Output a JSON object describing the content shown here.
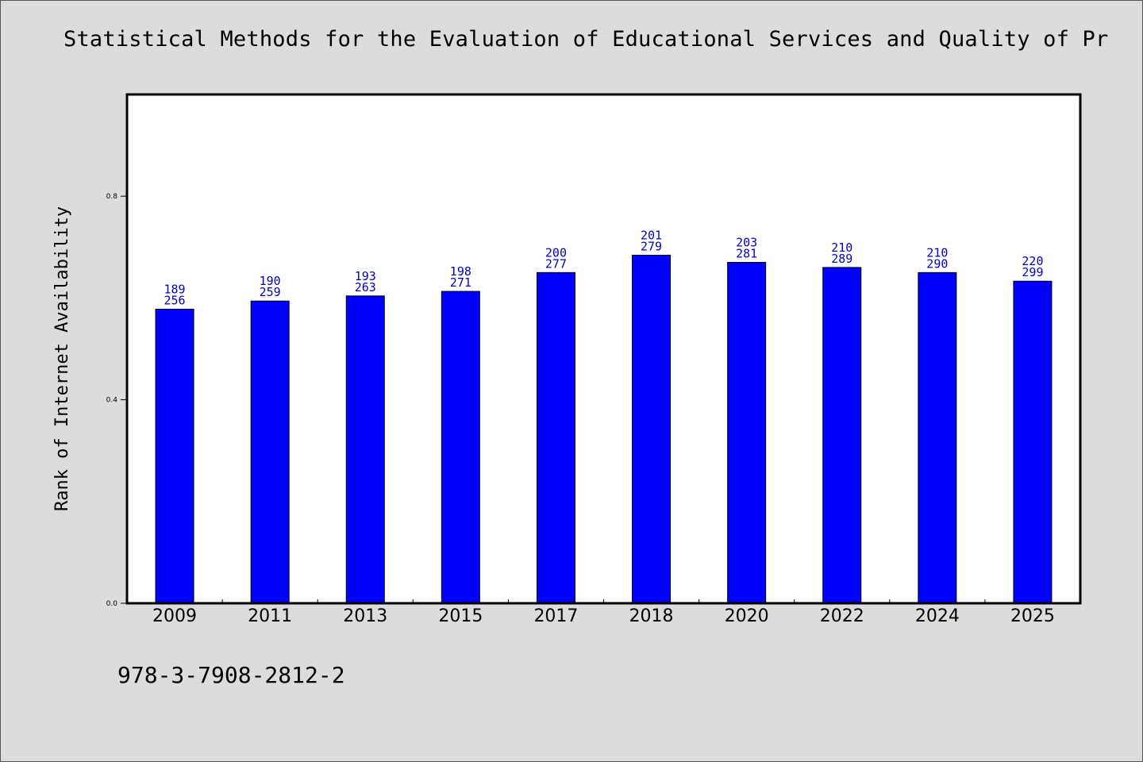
{
  "chart_data": {
    "type": "bar",
    "title": "Statistical Methods for the Evaluation of Educational Services and Quality of Pr",
    "xlabel": "",
    "ylabel": "Rank of Internet Availability",
    "ylim": [
      0,
      1
    ],
    "y_ticks": [
      "0.0",
      "0.4",
      "0.8"
    ],
    "grid": false,
    "legend": "none",
    "bar_color": "#0000ff",
    "label_color": "#0000cc",
    "categories": [
      "2009",
      "2011",
      "2013",
      "2015",
      "2017",
      "2018",
      "2020",
      "2022",
      "2024",
      "2025"
    ],
    "values": [
      0.578,
      0.594,
      0.604,
      0.613,
      0.65,
      0.684,
      0.67,
      0.66,
      0.65,
      0.633
    ],
    "labels_top": [
      "189",
      "190",
      "193",
      "198",
      "200",
      "201",
      "203",
      "210",
      "210",
      "220"
    ],
    "labels_bottom": [
      "256",
      "259",
      "263",
      "271",
      "277",
      "279",
      "281",
      "289",
      "290",
      "299"
    ]
  },
  "footer": {
    "code": "978-3-7908-2812-2"
  }
}
